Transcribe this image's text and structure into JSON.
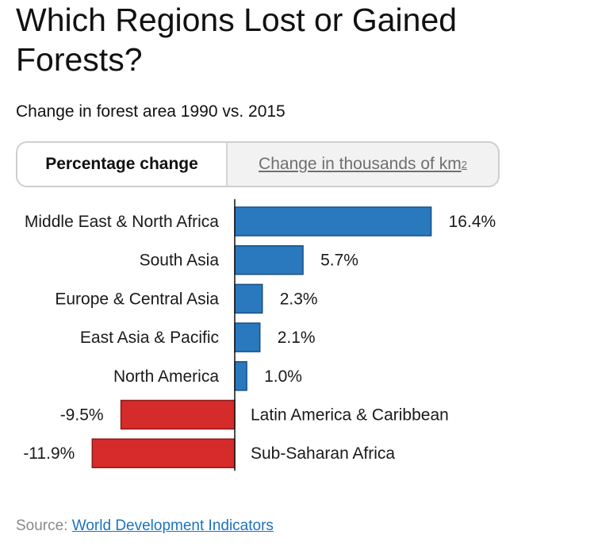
{
  "header": {
    "title": "Which Regions Lost or Gained Forests?",
    "subtitle": "Change in forest area 1990 vs. 2015"
  },
  "toggle": {
    "active_label": "Percentage change",
    "inactive_label": "Change in thousands of km",
    "inactive_superscript": "2"
  },
  "source": {
    "prefix": "Source: ",
    "link_text": "World Development Indicators"
  },
  "colors": {
    "positive": "#2a78bd",
    "positive_border": "#1a4f86",
    "negative": "#d62b2b",
    "negative_border": "#8e1818",
    "axis": "#111111"
  },
  "chart_data": {
    "type": "bar",
    "orientation": "horizontal",
    "title": "Which Regions Lost or Gained Forests?",
    "subtitle": "Change in forest area 1990 vs. 2015",
    "categories": [
      "Middle East & North Africa",
      "South Asia",
      "Europe & Central Asia",
      "East Asia & Pacific",
      "North America",
      "Latin America & Caribbean",
      "Sub-Saharan Africa"
    ],
    "values": [
      16.4,
      5.7,
      2.3,
      2.1,
      1.0,
      -9.5,
      -11.9
    ],
    "value_labels": [
      "16.4%",
      "5.7%",
      "2.3%",
      "2.1%",
      "1.0%",
      "-9.5%",
      "-11.9%"
    ],
    "unit": "%",
    "xlim": [
      -11.9,
      16.4
    ],
    "grid": false,
    "legend": "none"
  }
}
